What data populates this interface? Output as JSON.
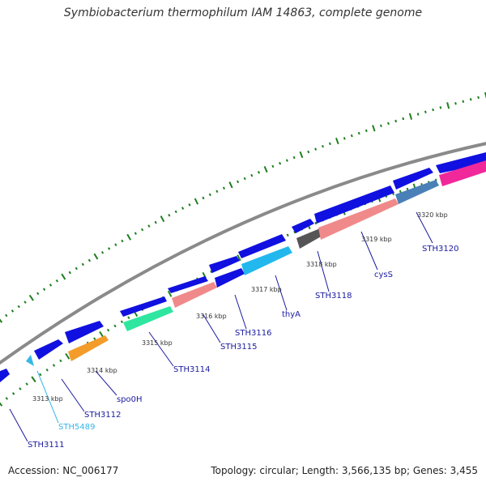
{
  "title": "Symbiobacterium thermophilum IAM 14863, complete genome",
  "footer": {
    "accession": "Accession: NC_006177",
    "summary": "Topology: circular; Length: 3,566,135 bp; Genes: 3,455"
  },
  "colors": {
    "backbone": "#888888",
    "tick": "#1f7f1f",
    "label_default": "#1a1aa0",
    "label_cyan": "#36b7e8"
  },
  "scale_labels": [
    "3313 kbp",
    "3314 kbp",
    "3315 kbp",
    "3316 kbp",
    "3317 kbp",
    "3318 kbp",
    "3319 kbp",
    "3320 kbp"
  ],
  "gene_labels": [
    "STH3111",
    "STH5489",
    "STH3112",
    "spo0H",
    "STH3114",
    "STH3115",
    "STH3116",
    "thyA",
    "STH3118",
    "cysS",
    "STH3120"
  ]
}
